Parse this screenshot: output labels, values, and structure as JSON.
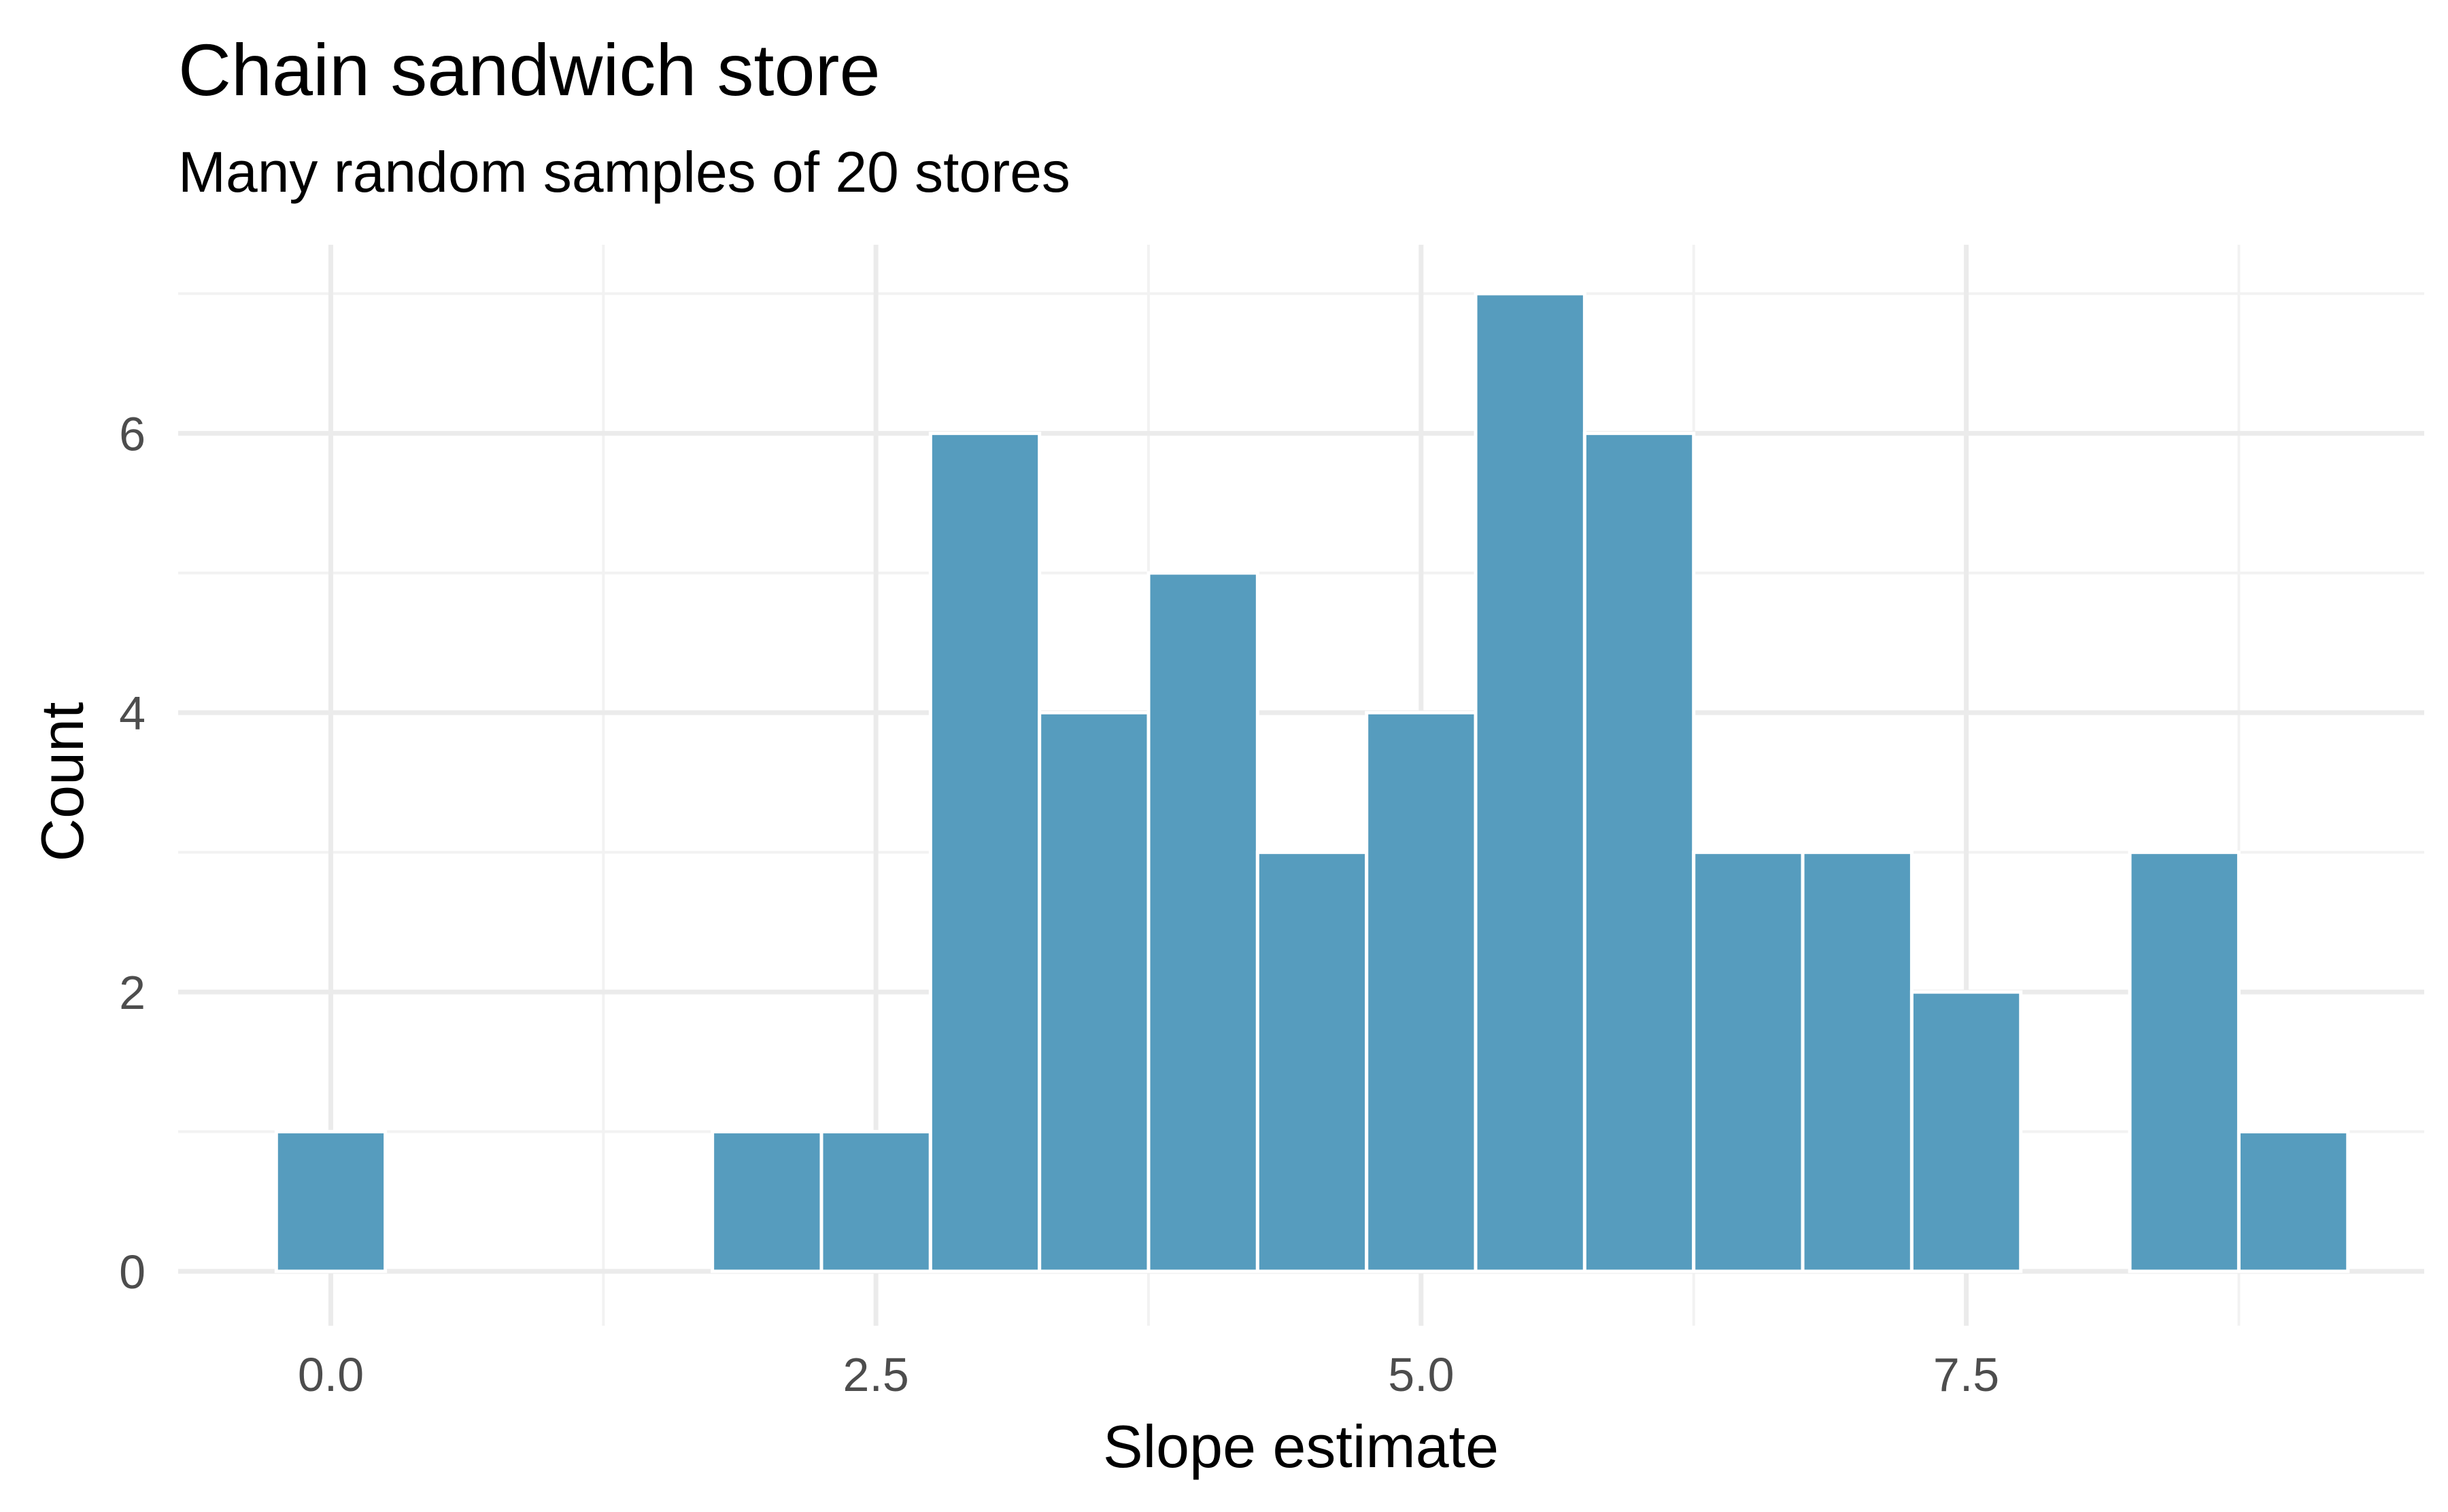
{
  "chart_data": {
    "type": "bar",
    "title": "Chain sandwich store",
    "subtitle": "Many random samples of 20 stores",
    "xlabel": "Slope estimate",
    "ylabel": "Count",
    "xlim": [
      -0.7,
      9.6
    ],
    "ylim": [
      0,
      7.35
    ],
    "x_ticks": [
      0.0,
      2.5,
      5.0,
      7.5
    ],
    "x_tick_labels": [
      "0.0",
      "2.5",
      "5.0",
      "7.5"
    ],
    "y_ticks": [
      0,
      2,
      4,
      6
    ],
    "y_tick_labels": [
      "0",
      "2",
      "4",
      "6"
    ],
    "bin_width": 0.5,
    "bars": [
      {
        "center": 0.0,
        "count": 1
      },
      {
        "center": 0.5,
        "count": 0
      },
      {
        "center": 1.0,
        "count": 0
      },
      {
        "center": 1.5,
        "count": 0
      },
      {
        "center": 2.0,
        "count": 1
      },
      {
        "center": 2.5,
        "count": 1
      },
      {
        "center": 3.0,
        "count": 6
      },
      {
        "center": 3.5,
        "count": 4
      },
      {
        "center": 4.0,
        "count": 5
      },
      {
        "center": 4.5,
        "count": 3
      },
      {
        "center": 5.0,
        "count": 4
      },
      {
        "center": 5.5,
        "count": 7
      },
      {
        "center": 6.0,
        "count": 6
      },
      {
        "center": 6.5,
        "count": 3
      },
      {
        "center": 7.0,
        "count": 3
      },
      {
        "center": 7.5,
        "count": 2
      },
      {
        "center": 8.0,
        "count": 0
      },
      {
        "center": 8.5,
        "count": 3
      },
      {
        "center": 9.0,
        "count": 1
      }
    ],
    "grid": true,
    "colors": {
      "bar_fill": "#569CBE",
      "bar_outline": "#FFFFFF",
      "grid_major": "#EBEBEB",
      "grid_minor": "#F2F2F2"
    }
  }
}
